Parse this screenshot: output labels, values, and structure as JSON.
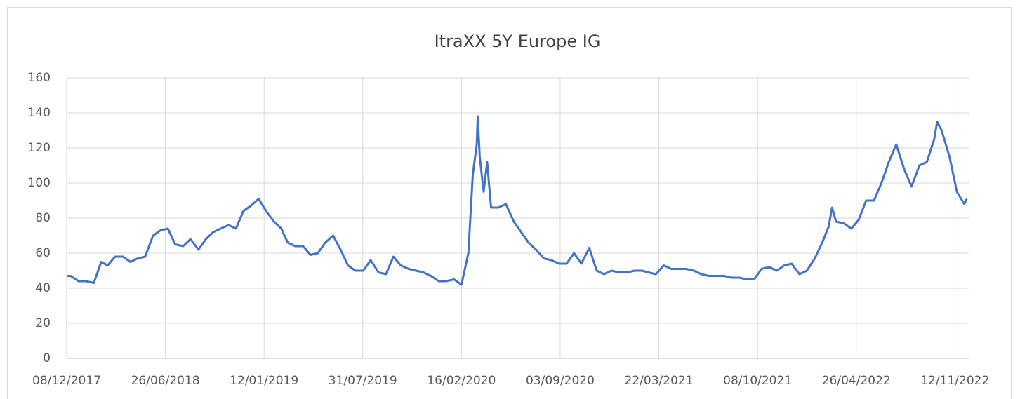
{
  "chart_data": {
    "type": "line",
    "title": "ItraXX 5Y Europe IG",
    "x": [
      "08/12/2017",
      "16/12/2017",
      "01/01/2018",
      "16/01/2018",
      "01/02/2018",
      "16/02/2018",
      "01/03/2018",
      "16/03/2018",
      "01/04/2018",
      "16/04/2018",
      "01/05/2018",
      "16/05/2018",
      "01/06/2018",
      "16/06/2018",
      "01/07/2018",
      "16/07/2018",
      "01/08/2018",
      "16/08/2018",
      "01/09/2018",
      "16/09/2018",
      "01/10/2018",
      "16/10/2018",
      "01/11/2018",
      "16/11/2018",
      "01/12/2018",
      "16/12/2018",
      "01/01/2019",
      "16/01/2019",
      "01/02/2019",
      "16/02/2019",
      "01/03/2019",
      "16/03/2019",
      "01/04/2019",
      "16/04/2019",
      "01/05/2019",
      "16/05/2019",
      "01/06/2019",
      "16/06/2019",
      "01/07/2019",
      "16/07/2019",
      "01/08/2019",
      "16/08/2019",
      "01/09/2019",
      "16/09/2019",
      "01/10/2019",
      "16/10/2019",
      "01/11/2019",
      "16/11/2019",
      "01/12/2019",
      "16/12/2019",
      "01/01/2020",
      "16/01/2020",
      "01/02/2020",
      "16/02/2020",
      "01/03/2020",
      "10/03/2020",
      "18/03/2020",
      "20/03/2020",
      "24/03/2020",
      "01/04/2020",
      "08/04/2020",
      "16/04/2020",
      "01/05/2020",
      "16/05/2020",
      "01/06/2020",
      "16/06/2020",
      "01/07/2020",
      "16/07/2020",
      "01/08/2020",
      "16/08/2020",
      "01/09/2020",
      "16/09/2020",
      "01/10/2020",
      "16/10/2020",
      "01/11/2020",
      "16/11/2020",
      "01/12/2020",
      "16/12/2020",
      "01/01/2021",
      "16/01/2021",
      "01/02/2021",
      "16/02/2021",
      "01/03/2021",
      "16/03/2021",
      "01/04/2021",
      "16/04/2021",
      "01/05/2021",
      "16/05/2021",
      "01/06/2021",
      "16/06/2021",
      "01/07/2021",
      "16/07/2021",
      "01/08/2021",
      "16/08/2021",
      "01/09/2021",
      "16/09/2021",
      "01/10/2021",
      "16/10/2021",
      "01/11/2021",
      "16/11/2021",
      "01/12/2021",
      "16/12/2021",
      "01/01/2022",
      "16/01/2022",
      "01/02/2022",
      "16/02/2022",
      "01/03/2022",
      "08/03/2022",
      "16/03/2022",
      "01/04/2022",
      "16/04/2022",
      "01/05/2022",
      "16/05/2022",
      "01/06/2022",
      "16/06/2022",
      "01/07/2022",
      "16/07/2022",
      "01/08/2022",
      "16/08/2022",
      "01/09/2022",
      "16/09/2022",
      "01/10/2022",
      "07/10/2022",
      "16/10/2022",
      "01/11/2022",
      "16/11/2022",
      "01/12/2022",
      "06/12/2022"
    ],
    "series": [
      {
        "color": "#4472c4",
        "values": [
          47,
          47,
          44,
          44,
          43,
          55,
          53,
          58,
          58,
          55,
          57,
          58,
          70,
          73,
          74,
          65,
          64,
          68,
          62,
          68,
          72,
          74,
          76,
          74,
          84,
          87,
          91,
          84,
          78,
          74,
          66,
          64,
          64,
          59,
          60,
          66,
          70,
          62,
          53,
          50,
          50,
          56,
          49,
          48,
          58,
          53,
          51,
          50,
          49,
          47,
          44,
          44,
          45,
          42,
          60,
          105,
          122,
          138,
          115,
          95,
          112,
          86,
          86,
          88,
          78,
          72,
          66,
          62,
          57,
          56,
          54,
          54,
          60,
          54,
          63,
          50,
          48,
          50,
          49,
          49,
          50,
          50,
          49,
          48,
          53,
          51,
          51,
          51,
          50,
          48,
          47,
          47,
          47,
          46,
          46,
          45,
          45,
          51,
          52,
          50,
          53,
          54,
          48,
          50,
          57,
          66,
          75,
          86,
          78,
          77,
          74,
          79,
          90,
          90,
          100,
          112,
          122,
          108,
          98,
          110,
          112,
          125,
          135,
          130,
          115,
          95,
          88,
          91
        ]
      }
    ],
    "xlim": [
      "08/12/2017",
      "10/12/2022"
    ],
    "xticks": [
      "08/12/2017",
      "26/06/2018",
      "12/01/2019",
      "31/07/2019",
      "16/02/2020",
      "03/09/2020",
      "22/03/2021",
      "08/10/2021",
      "26/04/2022",
      "12/11/2022"
    ],
    "ylim": [
      0,
      160
    ],
    "yticks": [
      0,
      20,
      40,
      60,
      80,
      100,
      120,
      140,
      160
    ],
    "grid": true
  }
}
